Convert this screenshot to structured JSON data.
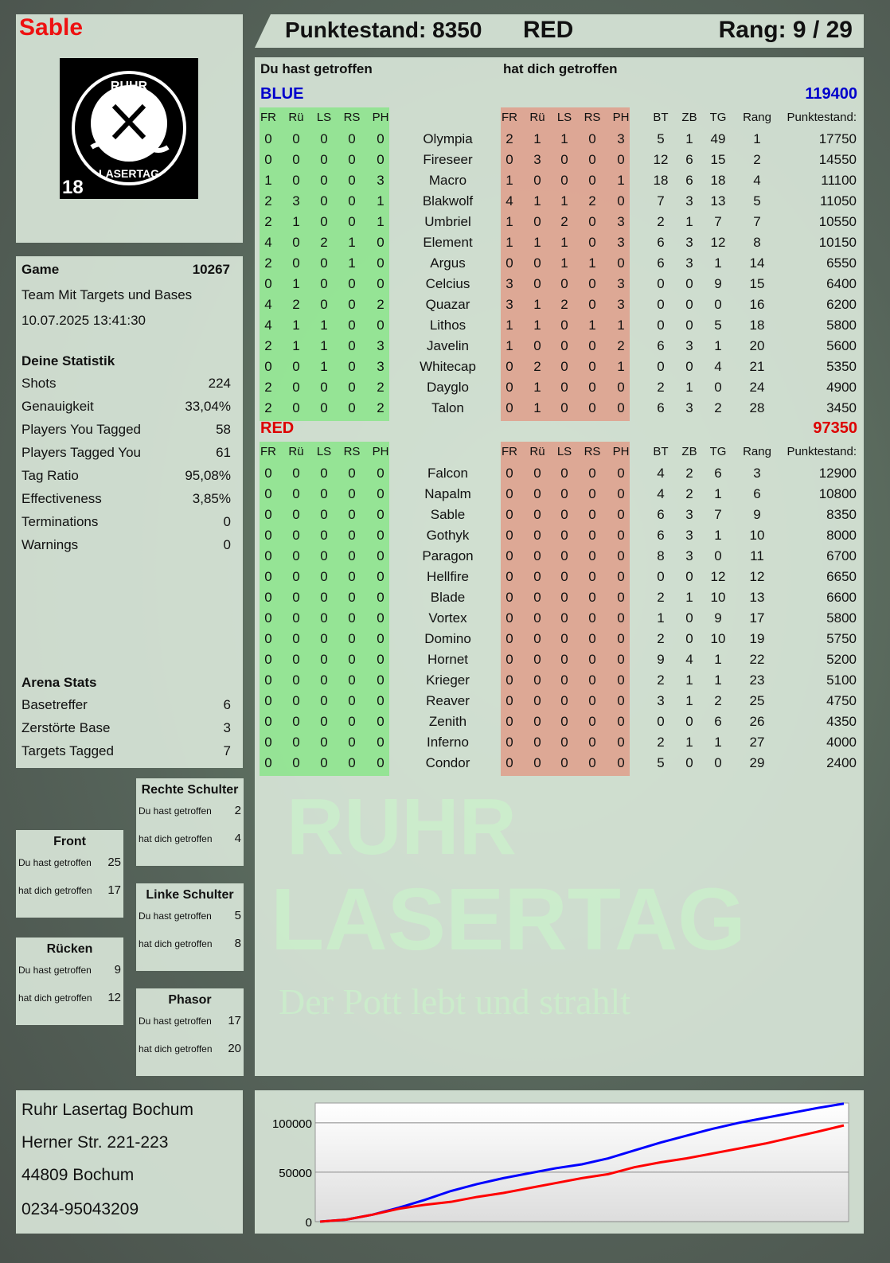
{
  "player": {
    "name": "Sable",
    "logo_text": "RUHR LASERTAG",
    "logo_badge": "18"
  },
  "header": {
    "score": "Punktestand: 8350",
    "team": "RED",
    "rank": "Rang: 9 / 29"
  },
  "game": {
    "label": "Game",
    "id": "10267",
    "mode": "Team Mit Targets und Bases",
    "datetime": "10.07.2025 13:41:30"
  },
  "stats": {
    "title": "Deine Statistik",
    "items": [
      {
        "label": "Shots",
        "value": "224"
      },
      {
        "label": "Genauigkeit",
        "value": "33,04%"
      },
      {
        "label": "Players You Tagged",
        "value": "58"
      },
      {
        "label": "Players Tagged You",
        "value": "61"
      },
      {
        "label": "Tag Ratio",
        "value": "95,08%"
      },
      {
        "label": "Effectiveness",
        "value": "3,85%"
      },
      {
        "label": "Terminations",
        "value": "0"
      },
      {
        "label": "Warnings",
        "value": "0"
      }
    ]
  },
  "arena": {
    "title": "Arena Stats",
    "items": [
      {
        "label": "Basetreffer",
        "value": "6"
      },
      {
        "label": "Zerstörte Base",
        "value": "3"
      },
      {
        "label": "Targets Tagged",
        "value": "7"
      }
    ]
  },
  "zones": [
    {
      "title": "Rechte Schulter",
      "hit_label": "Du hast getroffen",
      "hit": "2",
      "got_label": "hat dich getroffen",
      "got": "4"
    },
    {
      "title": "Front",
      "hit_label": "Du hast getroffen",
      "hit": "25",
      "got_label": "hat dich getroffen",
      "got": "17"
    },
    {
      "title": "Linke Schulter",
      "hit_label": "Du hast getroffen",
      "hit": "5",
      "got_label": "hat dich getroffen",
      "got": "8"
    },
    {
      "title": "Rücken",
      "hit_label": "Du hast getroffen",
      "hit": "9",
      "got_label": "hat dich getroffen",
      "got": "12"
    },
    {
      "title": "Phasor",
      "hit_label": "Du hast getroffen",
      "hit": "17",
      "got_label": "hat dich getroffen",
      "got": "20"
    }
  ],
  "address": [
    "Ruhr Lasertag Bochum",
    "Herner Str. 221-223",
    "44809 Bochum",
    "0234-95043209"
  ],
  "table": {
    "you_hit": "Du hast getroffen",
    "hit_you": "hat dich getroffen",
    "columns": [
      "FR",
      "Rü",
      "LS",
      "RS",
      "PH",
      "FR",
      "Rü",
      "LS",
      "RS",
      "PH",
      "BT",
      "ZB",
      "TG",
      "Rang",
      "Punktestand:"
    ],
    "teams": [
      {
        "name": "BLUE",
        "total": "119400",
        "color": "#0000cc",
        "players": [
          [
            "0",
            "0",
            "0",
            "0",
            "0",
            "Olympia",
            "2",
            "1",
            "1",
            "0",
            "3",
            "5",
            "1",
            "49",
            "1",
            "17750"
          ],
          [
            "0",
            "0",
            "0",
            "0",
            "0",
            "Fireseer",
            "0",
            "3",
            "0",
            "0",
            "0",
            "12",
            "6",
            "15",
            "2",
            "14550"
          ],
          [
            "1",
            "0",
            "0",
            "0",
            "3",
            "Macro",
            "1",
            "0",
            "0",
            "0",
            "1",
            "18",
            "6",
            "18",
            "4",
            "11100"
          ],
          [
            "2",
            "3",
            "0",
            "0",
            "1",
            "Blakwolf",
            "4",
            "1",
            "1",
            "2",
            "0",
            "7",
            "3",
            "13",
            "5",
            "11050"
          ],
          [
            "2",
            "1",
            "0",
            "0",
            "1",
            "Umbriel",
            "1",
            "0",
            "2",
            "0",
            "3",
            "2",
            "1",
            "7",
            "7",
            "10550"
          ],
          [
            "4",
            "0",
            "2",
            "1",
            "0",
            "Element",
            "1",
            "1",
            "1",
            "0",
            "3",
            "6",
            "3",
            "12",
            "8",
            "10150"
          ],
          [
            "2",
            "0",
            "0",
            "1",
            "0",
            "Argus",
            "0",
            "0",
            "1",
            "1",
            "0",
            "6",
            "3",
            "1",
            "14",
            "6550"
          ],
          [
            "0",
            "1",
            "0",
            "0",
            "0",
            "Celcius",
            "3",
            "0",
            "0",
            "0",
            "3",
            "0",
            "0",
            "9",
            "15",
            "6400"
          ],
          [
            "4",
            "2",
            "0",
            "0",
            "2",
            "Quazar",
            "3",
            "1",
            "2",
            "0",
            "3",
            "0",
            "0",
            "0",
            "16",
            "6200"
          ],
          [
            "4",
            "1",
            "1",
            "0",
            "0",
            "Lithos",
            "1",
            "1",
            "0",
            "1",
            "1",
            "0",
            "0",
            "5",
            "18",
            "5800"
          ],
          [
            "2",
            "1",
            "1",
            "0",
            "3",
            "Javelin",
            "1",
            "0",
            "0",
            "0",
            "2",
            "6",
            "3",
            "1",
            "20",
            "5600"
          ],
          [
            "0",
            "0",
            "1",
            "0",
            "3",
            "Whitecap",
            "0",
            "2",
            "0",
            "0",
            "1",
            "0",
            "0",
            "4",
            "21",
            "5350"
          ],
          [
            "2",
            "0",
            "0",
            "0",
            "2",
            "Dayglo",
            "0",
            "1",
            "0",
            "0",
            "0",
            "2",
            "1",
            "0",
            "24",
            "4900"
          ],
          [
            "2",
            "0",
            "0",
            "0",
            "2",
            "Talon",
            "0",
            "1",
            "0",
            "0",
            "0",
            "6",
            "3",
            "2",
            "28",
            "3450"
          ]
        ]
      },
      {
        "name": "RED",
        "total": "97350",
        "color": "#dd0000",
        "players": [
          [
            "0",
            "0",
            "0",
            "0",
            "0",
            "Falcon",
            "0",
            "0",
            "0",
            "0",
            "0",
            "4",
            "2",
            "6",
            "3",
            "12900"
          ],
          [
            "0",
            "0",
            "0",
            "0",
            "0",
            "Napalm",
            "0",
            "0",
            "0",
            "0",
            "0",
            "4",
            "2",
            "1",
            "6",
            "10800"
          ],
          [
            "0",
            "0",
            "0",
            "0",
            "0",
            "Sable",
            "0",
            "0",
            "0",
            "0",
            "0",
            "6",
            "3",
            "7",
            "9",
            "8350"
          ],
          [
            "0",
            "0",
            "0",
            "0",
            "0",
            "Gothyk",
            "0",
            "0",
            "0",
            "0",
            "0",
            "6",
            "3",
            "1",
            "10",
            "8000"
          ],
          [
            "0",
            "0",
            "0",
            "0",
            "0",
            "Paragon",
            "0",
            "0",
            "0",
            "0",
            "0",
            "8",
            "3",
            "0",
            "11",
            "6700"
          ],
          [
            "0",
            "0",
            "0",
            "0",
            "0",
            "Hellfire",
            "0",
            "0",
            "0",
            "0",
            "0",
            "0",
            "0",
            "12",
            "12",
            "6650"
          ],
          [
            "0",
            "0",
            "0",
            "0",
            "0",
            "Blade",
            "0",
            "0",
            "0",
            "0",
            "0",
            "2",
            "1",
            "10",
            "13",
            "6600"
          ],
          [
            "0",
            "0",
            "0",
            "0",
            "0",
            "Vortex",
            "0",
            "0",
            "0",
            "0",
            "0",
            "1",
            "0",
            "9",
            "17",
            "5800"
          ],
          [
            "0",
            "0",
            "0",
            "0",
            "0",
            "Domino",
            "0",
            "0",
            "0",
            "0",
            "0",
            "2",
            "0",
            "10",
            "19",
            "5750"
          ],
          [
            "0",
            "0",
            "0",
            "0",
            "0",
            "Hornet",
            "0",
            "0",
            "0",
            "0",
            "0",
            "9",
            "4",
            "1",
            "22",
            "5200"
          ],
          [
            "0",
            "0",
            "0",
            "0",
            "0",
            "Krieger",
            "0",
            "0",
            "0",
            "0",
            "0",
            "2",
            "1",
            "1",
            "23",
            "5100"
          ],
          [
            "0",
            "0",
            "0",
            "0",
            "0",
            "Reaver",
            "0",
            "0",
            "0",
            "0",
            "0",
            "3",
            "1",
            "2",
            "25",
            "4750"
          ],
          [
            "0",
            "0",
            "0",
            "0",
            "0",
            "Zenith",
            "0",
            "0",
            "0",
            "0",
            "0",
            "0",
            "0",
            "6",
            "26",
            "4350"
          ],
          [
            "0",
            "0",
            "0",
            "0",
            "0",
            "Inferno",
            "0",
            "0",
            "0",
            "0",
            "0",
            "2",
            "1",
            "1",
            "27",
            "4000"
          ],
          [
            "0",
            "0",
            "0",
            "0",
            "0",
            "Condor",
            "0",
            "0",
            "0",
            "0",
            "0",
            "5",
            "0",
            "0",
            "29",
            "2400"
          ]
        ]
      }
    ]
  },
  "watermark": {
    "line1": "RUHR",
    "line2": "LASERTAG",
    "slogan": "Der Pott lebt und strahlt"
  },
  "chart_data": {
    "type": "line",
    "ylim": [
      0,
      120000
    ],
    "yticks": [
      "0",
      "50000",
      "100000"
    ],
    "grid": true,
    "series": [
      {
        "color": "#0000ff",
        "values": [
          0,
          2000,
          7000,
          14000,
          22000,
          31000,
          38000,
          44000,
          49000,
          54000,
          58000,
          64000,
          72000,
          80000,
          87000,
          94000,
          100000,
          105000,
          110000,
          115000,
          119400
        ]
      },
      {
        "color": "#ff0000",
        "values": [
          0,
          2000,
          7000,
          13000,
          17000,
          20000,
          25000,
          29000,
          34000,
          39000,
          44000,
          48000,
          55000,
          60000,
          64000,
          69000,
          74000,
          79000,
          85000,
          91000,
          97350
        ]
      }
    ]
  }
}
